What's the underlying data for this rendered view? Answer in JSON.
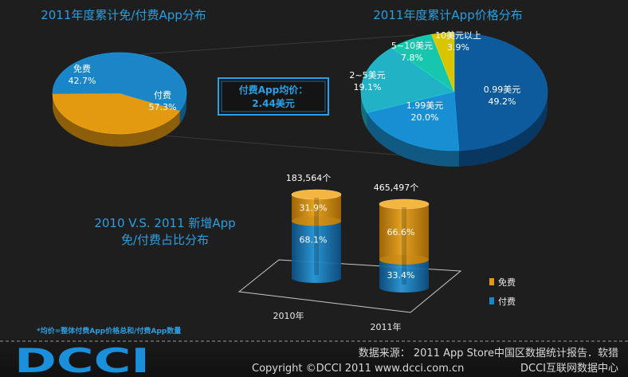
{
  "colors": {
    "background": "#1e1e1e",
    "title": "#2b9ee0",
    "free": "#e49a10",
    "paid": "#1a86c8",
    "price_099": "#0d5a9c",
    "price_199": "#188fd2",
    "price_2_5": "#22b2c6",
    "price_5_10": "#17c7ad",
    "price_10plus": "#d8c400",
    "footer": "#d8d8d8",
    "logo": "#1a90dd"
  },
  "chart_data": [
    {
      "type": "pie",
      "title": "2011年度累计免/付费App分布",
      "slices": [
        {
          "key": "free",
          "label": "免费",
          "value": 42.7,
          "pct": "42.7%"
        },
        {
          "key": "paid",
          "label": "付费",
          "value": 57.3,
          "pct": "57.3%"
        }
      ]
    },
    {
      "type": "pie",
      "title": "2011年度累计App价格分布",
      "slices": [
        {
          "key": "price_099",
          "label": "0.99美元",
          "value": 49.2,
          "pct": "49.2%"
        },
        {
          "key": "price_199",
          "label": "1.99美元",
          "value": 20.0,
          "pct": "20.0%"
        },
        {
          "key": "price_2_5",
          "label": "2~5美元",
          "value": 19.1,
          "pct": "19.1%"
        },
        {
          "key": "price_5_10",
          "label": "5~10美元",
          "value": 7.8,
          "pct": "7.8%"
        },
        {
          "key": "price_10plus",
          "label": "10美元以上",
          "value": 3.9,
          "pct": "3.9%"
        }
      ]
    },
    {
      "type": "bar",
      "stacked": true,
      "title_lines": [
        "2010 V.S. 2011 新增App",
        "免/付费占比分布"
      ],
      "categories": [
        "2010年",
        "2011年"
      ],
      "totals": [
        "183,564个",
        "465,497个"
      ],
      "series": [
        {
          "key": "paid",
          "name": "付费",
          "values": [
            68.1,
            33.4
          ],
          "labels": [
            "68.1%",
            "33.4%"
          ]
        },
        {
          "key": "free",
          "name": "免费",
          "values": [
            31.9,
            66.6
          ],
          "labels": [
            "31.9%",
            "66.6%"
          ]
        }
      ],
      "legend": [
        "免费",
        "付费"
      ]
    }
  ],
  "callout": {
    "line1": "付费App均价：",
    "line2": "2.44美元"
  },
  "footnote": "*均价=整体付费App价格总和/付费App数量",
  "footer": {
    "logo": "DCCI",
    "source": "数据来源： 2011 App Store中国区数据统计报告．软猎",
    "copyright": "Copyright ©DCCI 2011 www.dcci.com.cn",
    "org": "DCCI互联网数据中心"
  }
}
